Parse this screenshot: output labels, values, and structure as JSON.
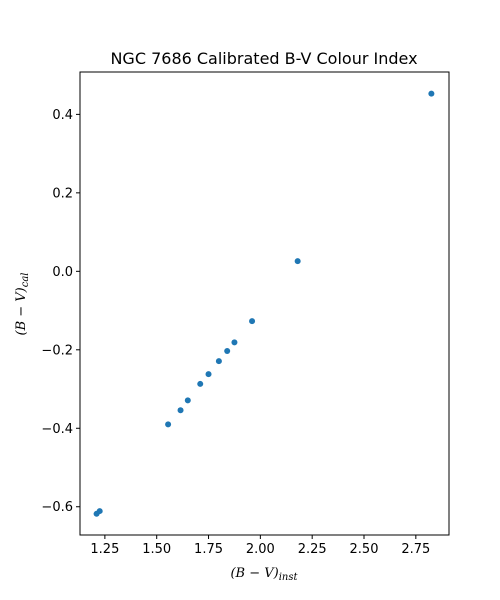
{
  "chart_data": {
    "type": "scatter",
    "title": "NGC 7686 Calibrated B-V Colour Index",
    "xlabel": {
      "main": "(B − V)",
      "sub": "inst"
    },
    "ylabel": {
      "main": "(B − V)",
      "sub": "cal"
    },
    "xlim": [
      1.13,
      2.91
    ],
    "ylim": [
      -0.672,
      0.508
    ],
    "xticks": [
      1.25,
      1.5,
      1.75,
      2.0,
      2.25,
      2.5,
      2.75
    ],
    "xtick_labels": [
      "1.25",
      "1.50",
      "1.75",
      "2.00",
      "2.25",
      "2.50",
      "2.75"
    ],
    "yticks": [
      -0.6,
      -0.4,
      -0.2,
      0.0,
      0.2,
      0.4
    ],
    "ytick_labels": [
      "−0.6",
      "−0.4",
      "−0.2",
      "0.0",
      "0.2",
      "0.4"
    ],
    "grid": false,
    "marker_color": "#1f77b4",
    "points": [
      {
        "x": 1.21,
        "y": -0.618
      },
      {
        "x": 1.225,
        "y": -0.611
      },
      {
        "x": 1.555,
        "y": -0.39
      },
      {
        "x": 1.615,
        "y": -0.354
      },
      {
        "x": 1.65,
        "y": -0.329
      },
      {
        "x": 1.71,
        "y": -0.287
      },
      {
        "x": 1.75,
        "y": -0.262
      },
      {
        "x": 1.8,
        "y": -0.229
      },
      {
        "x": 1.84,
        "y": -0.203
      },
      {
        "x": 1.875,
        "y": -0.181
      },
      {
        "x": 1.96,
        "y": -0.127
      },
      {
        "x": 2.18,
        "y": 0.026
      },
      {
        "x": 2.825,
        "y": 0.453
      }
    ]
  }
}
